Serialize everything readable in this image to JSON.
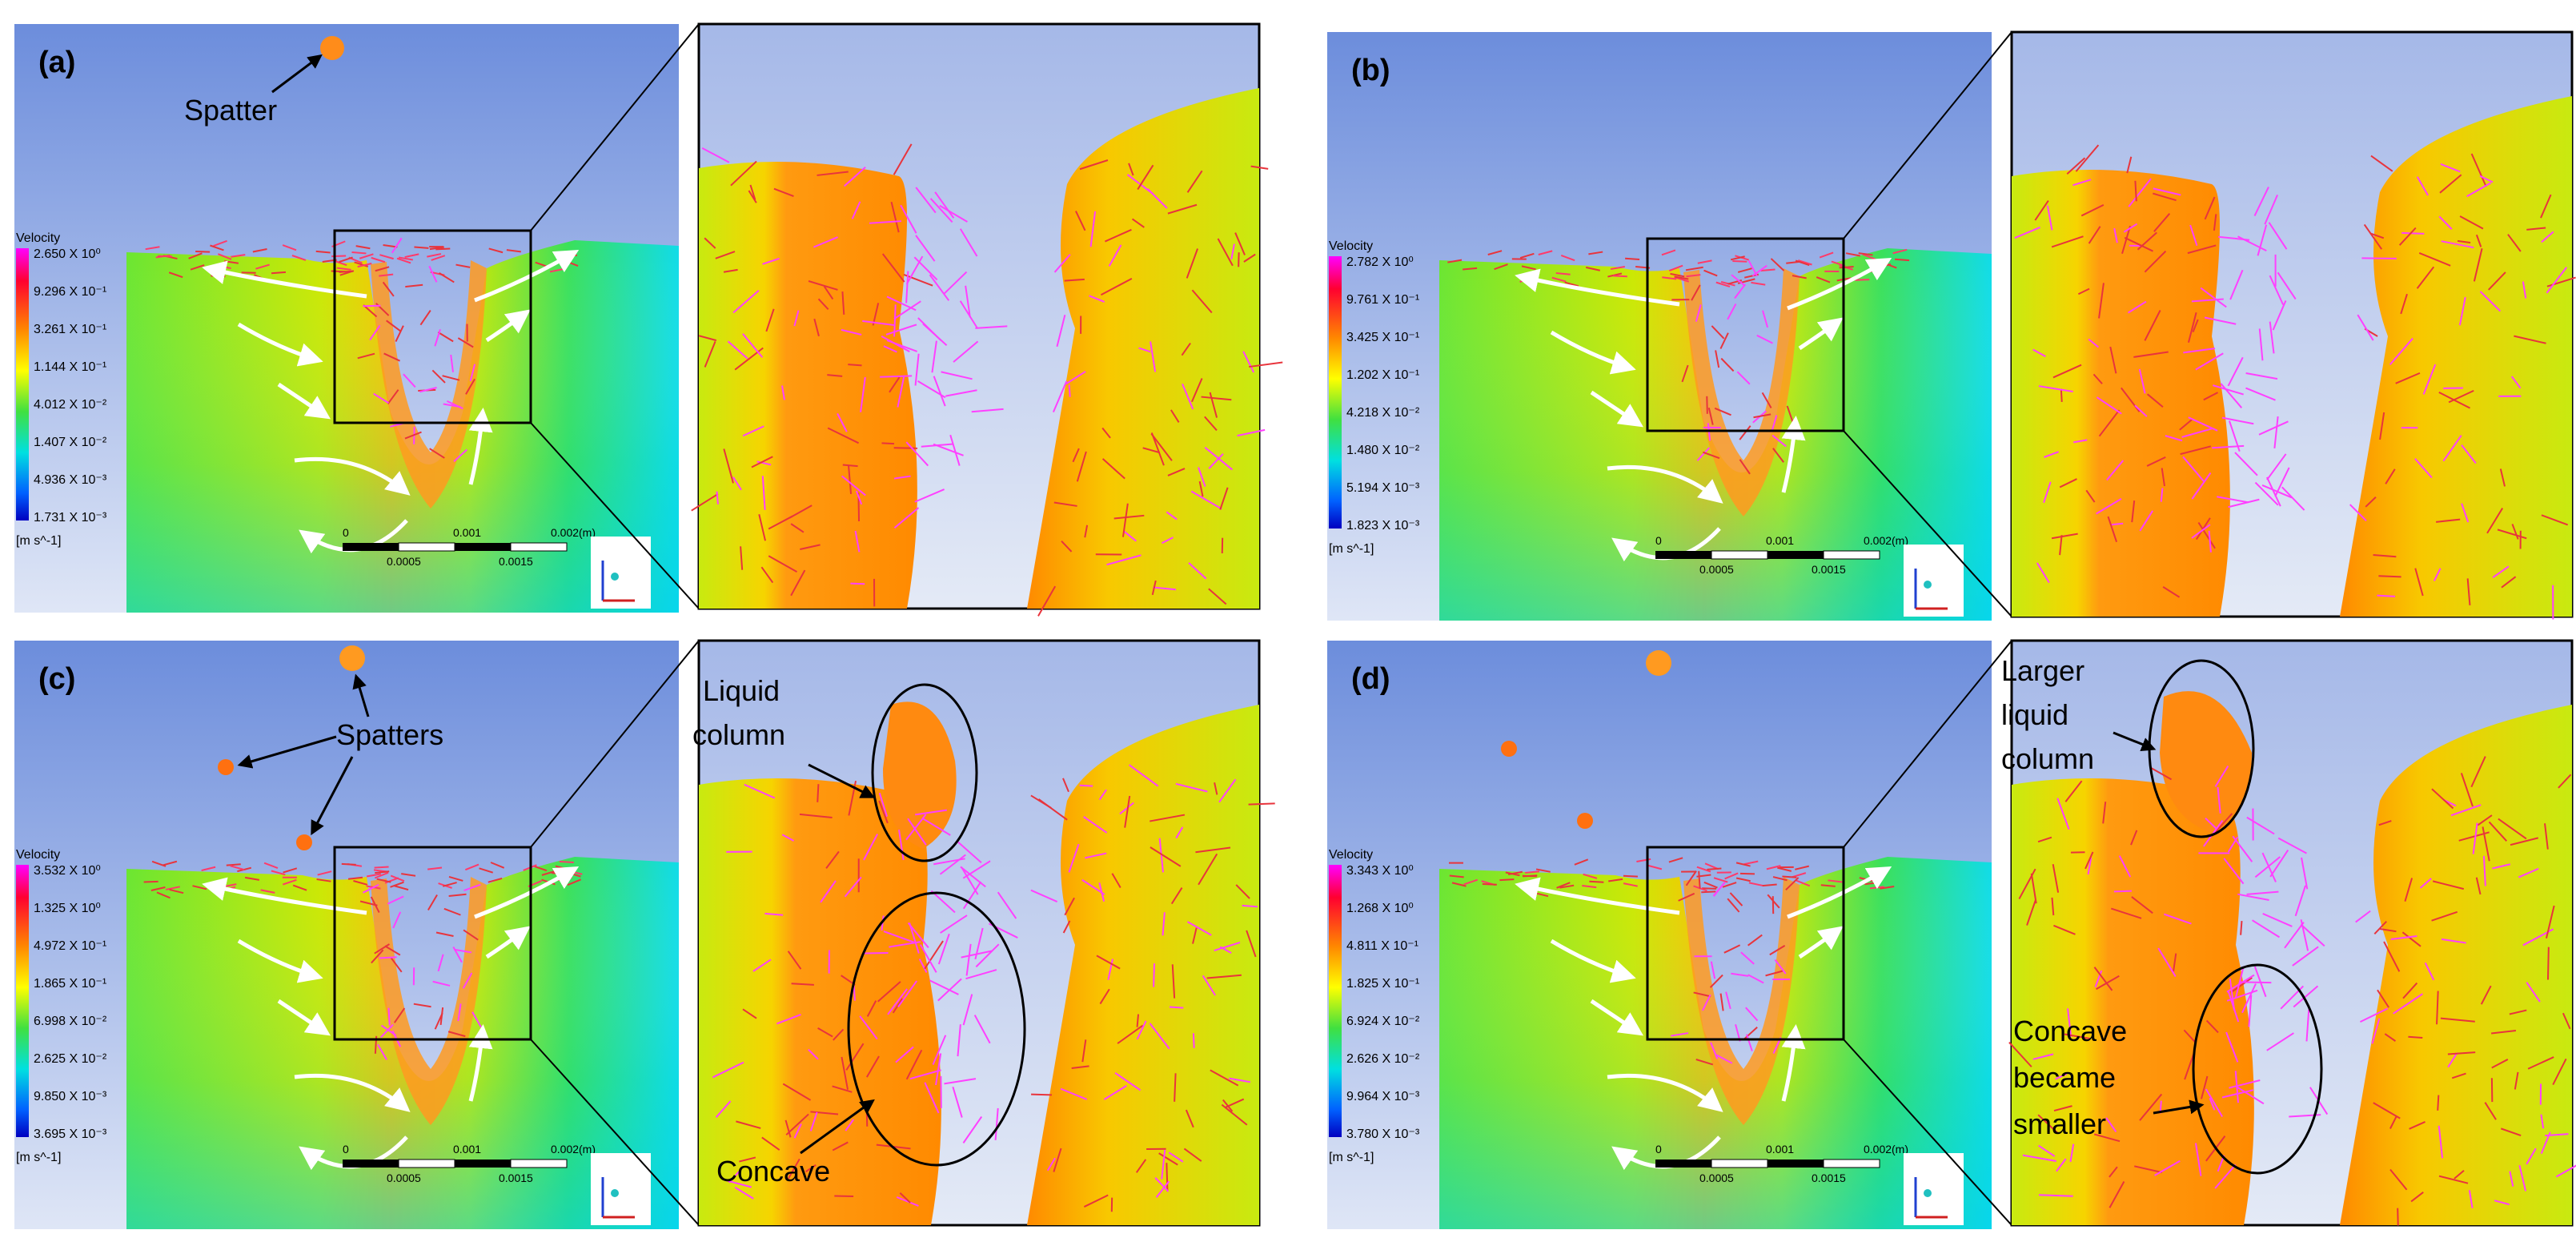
{
  "panels": [
    {
      "letter": "(a)",
      "legend": {
        "title": "Velocity",
        "values": [
          "2.650 X 10⁰",
          "9.296 X 10⁻¹",
          "3.261 X 10⁻¹",
          "1.144 X 10⁻¹",
          "4.012 X 10⁻²",
          "1.407 X 10⁻²",
          "4.936 X 10⁻³",
          "1.731 X 10⁻³"
        ],
        "unit": "[m s^-1]"
      },
      "scale": {
        "top": [
          "0",
          "0.001",
          "0.002",
          "(m)"
        ],
        "bottom": [
          "0.0005",
          "0.0015"
        ]
      },
      "annotations": [
        "Spatter"
      ]
    },
    {
      "letter": "(b)",
      "legend": {
        "title": "Velocity",
        "values": [
          "2.782 X 10⁰",
          "9.761 X 10⁻¹",
          "3.425 X 10⁻¹",
          "1.202 X 10⁻¹",
          "4.218 X 10⁻²",
          "1.480 X 10⁻²",
          "5.194 X 10⁻³",
          "1.823 X 10⁻³"
        ],
        "unit": "[m s^-1]"
      },
      "scale": {
        "top": [
          "0",
          "0.001",
          "0.002",
          "(m)"
        ],
        "bottom": [
          "0.0005",
          "0.0015"
        ]
      },
      "annotations": []
    },
    {
      "letter": "(c)",
      "legend": {
        "title": "Velocity",
        "values": [
          "3.532 X 10⁰",
          "1.325 X 10⁰",
          "4.972 X 10⁻¹",
          "1.865 X 10⁻¹",
          "6.998 X 10⁻²",
          "2.625 X 10⁻²",
          "9.850 X 10⁻³",
          "3.695 X 10⁻³"
        ],
        "unit": "[m s^-1]"
      },
      "scale": {
        "top": [
          "0",
          "0.001",
          "0.002",
          "(m)"
        ],
        "bottom": [
          "0.0005",
          "0.0015"
        ]
      },
      "annotations": [
        "Spatters",
        "Liquid",
        "column",
        "Concave"
      ]
    },
    {
      "letter": "(d)",
      "legend": {
        "title": "Velocity",
        "values": [
          "3.343 X 10⁰",
          "1.268 X 10⁰",
          "4.811 X 10⁻¹",
          "1.825 X 10⁻¹",
          "6.924 X 10⁻²",
          "2.626 X 10⁻²",
          "9.964 X 10⁻³",
          "3.780 X 10⁻³"
        ],
        "unit": "[m s^-1]"
      },
      "scale": {
        "top": [
          "0",
          "0.001",
          "0.002",
          "(m)"
        ],
        "bottom": [
          "0.0005",
          "0.0015"
        ]
      },
      "annotations": [
        "Larger",
        "liquid",
        "column",
        "Concave",
        "became",
        "smaller"
      ]
    }
  ],
  "colors": {
    "sky_top": "#6e8fdc",
    "sky_bottom": "#dfe6f6",
    "field_green": "#44e23c",
    "field_cyan": "#1ee6dc",
    "field_yellow": "#f0f000",
    "melt_orange": "#ff8c1a",
    "arrow_red": "#e8343c",
    "arrow_magenta": "#ff40ff",
    "annotation": "#000000",
    "flow_arrow": "#ffffff"
  }
}
